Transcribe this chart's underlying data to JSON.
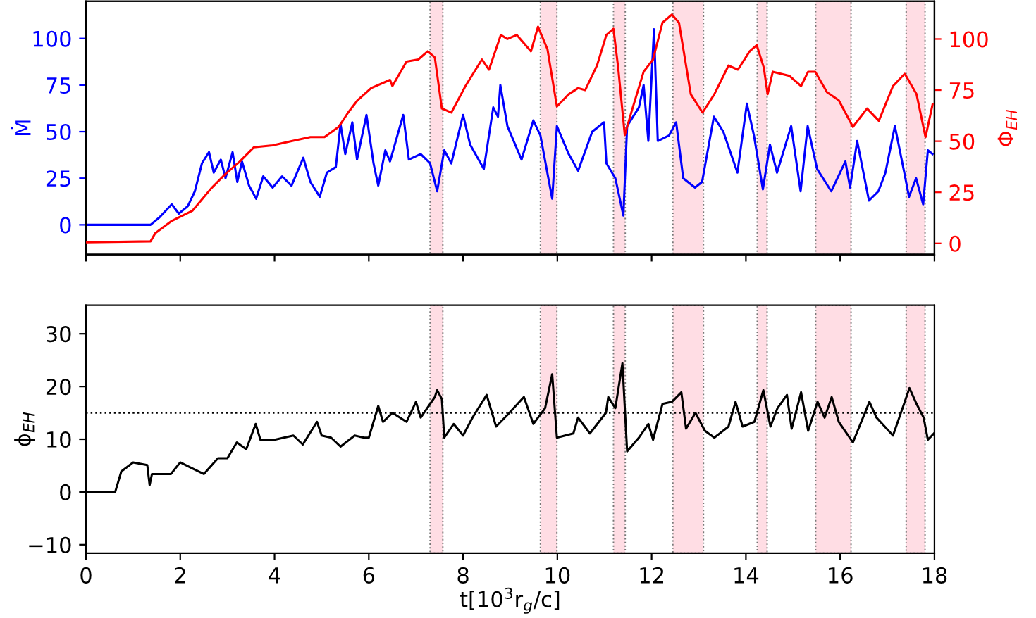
{
  "chart_data": [
    {
      "type": "line",
      "ylabel": "Ṁ",
      "y2label": "Φ$_{EH}$",
      "xlim": [
        0,
        18
      ],
      "xticks": [
        0,
        2,
        4,
        6,
        8,
        10,
        12,
        14,
        16,
        18
      ],
      "ylim": [
        -16,
        120
      ],
      "yticks": [
        0,
        25,
        50,
        75,
        100
      ],
      "y2lim": [
        -5.5,
        118.5
      ],
      "y2ticks": [
        0,
        25,
        50,
        75,
        100
      ],
      "tick_labels": "y",
      "grid": false,
      "legend": false,
      "line_style": "solid",
      "marker": "none",
      "series": [
        {
          "color": "#0000ff",
          "x": [
            0,
            1.37,
            1.56,
            1.82,
            1.97,
            2.16,
            2.31,
            2.46,
            2.61,
            2.71,
            2.86,
            2.96,
            3.11,
            3.21,
            3.31,
            3.46,
            3.61,
            3.76,
            3.96,
            4.16,
            4.36,
            4.61,
            4.76,
            4.96,
            5.11,
            5.3,
            5.4,
            5.5,
            5.65,
            5.75,
            5.95,
            6.1,
            6.2,
            6.35,
            6.45,
            6.73,
            6.85,
            7.1,
            7.3,
            7.45,
            7.6,
            7.75,
            8.0,
            8.15,
            8.44,
            8.64,
            8.74,
            8.79,
            8.94,
            9.24,
            9.49,
            9.64,
            9.89,
            9.99,
            10.24,
            10.44,
            10.74,
            10.99,
            11.04,
            11.23,
            11.4,
            11.48,
            11.73,
            11.83,
            11.93,
            12.05,
            12.13,
            12.37,
            12.52,
            12.67,
            12.92,
            13.07,
            13.32,
            13.52,
            13.82,
            14.02,
            14.17,
            14.36,
            14.51,
            14.66,
            14.96,
            15.16,
            15.31,
            15.51,
            15.81,
            16.11,
            16.21,
            16.36,
            16.61,
            16.81,
            16.96,
            17.16,
            17.36,
            17.46,
            17.61,
            17.76,
            17.86,
            17.96
          ],
          "values": [
            0,
            0,
            4,
            11,
            6,
            10,
            18,
            33,
            39,
            28,
            35,
            25,
            39,
            23,
            34,
            21,
            14,
            26,
            20,
            26,
            21,
            36,
            23,
            15,
            28,
            31,
            54,
            38,
            55,
            35,
            59,
            33,
            21,
            40,
            34,
            59,
            35,
            38,
            33,
            18,
            40,
            33,
            59,
            43,
            30,
            63,
            58,
            75,
            53,
            35,
            56,
            48,
            14,
            53,
            38,
            29,
            50,
            55,
            33,
            25,
            5,
            53,
            63,
            75,
            45,
            105,
            45,
            48,
            55,
            25,
            20,
            23,
            58,
            50,
            28,
            65,
            48,
            19,
            43,
            28,
            53,
            18,
            53,
            30,
            18,
            34,
            20,
            45,
            13,
            18,
            28,
            53,
            28,
            15,
            25,
            11,
            40,
            38
          ]
        },
        {
          "color": "#ff0000",
          "axis": "y2",
          "x": [
            0,
            1.37,
            1.47,
            1.82,
            2.26,
            2.66,
            2.96,
            3.26,
            3.56,
            3.96,
            4.36,
            4.76,
            5.06,
            5.36,
            5.56,
            5.76,
            6.05,
            6.45,
            6.5,
            6.8,
            7.05,
            7.25,
            7.4,
            7.55,
            7.75,
            8.05,
            8.4,
            8.55,
            8.8,
            8.94,
            9.14,
            9.44,
            9.59,
            9.79,
            9.99,
            10.24,
            10.44,
            10.59,
            10.84,
            11.04,
            11.19,
            11.29,
            11.43,
            11.58,
            11.83,
            12.03,
            12.23,
            12.43,
            12.58,
            12.83,
            13.08,
            13.33,
            13.63,
            13.83,
            14.08,
            14.23,
            14.38,
            14.46,
            14.57,
            14.92,
            15.17,
            15.32,
            15.47,
            15.72,
            15.97,
            16.27,
            16.57,
            16.82,
            17.12,
            17.37,
            17.62,
            17.81,
            17.96
          ],
          "values": [
            0.5,
            1,
            5,
            11,
            16,
            27,
            34,
            40,
            47,
            48,
            50,
            52,
            52,
            57,
            64,
            70,
            76,
            80,
            77,
            89,
            90,
            94,
            91,
            66,
            64,
            77,
            90,
            85,
            102,
            100,
            102,
            94,
            106,
            95,
            67,
            73,
            76,
            75,
            87,
            102,
            105,
            86,
            53,
            65,
            84,
            90,
            108,
            112,
            108,
            73,
            64,
            73,
            87,
            85,
            94,
            97,
            86,
            73,
            84,
            82,
            77,
            84,
            84,
            74,
            70,
            57,
            66,
            60,
            77,
            83,
            73,
            52,
            68
          ]
        }
      ],
      "bands": [
        {
          "axis": "x",
          "from": 7.3,
          "to": 7.57,
          "color": "#ffdde4"
        },
        {
          "axis": "x",
          "from": 9.64,
          "to": 9.99,
          "color": "#ffdde4"
        },
        {
          "axis": "x",
          "from": 11.19,
          "to": 11.44,
          "color": "#ffdde4"
        },
        {
          "axis": "x",
          "from": 12.45,
          "to": 13.1,
          "color": "#ffdde4"
        },
        {
          "axis": "x",
          "from": 14.24,
          "to": 14.45,
          "color": "#ffdde4"
        },
        {
          "axis": "x",
          "from": 15.48,
          "to": 16.23,
          "color": "#ffdde4"
        },
        {
          "axis": "x",
          "from": 17.4,
          "to": 17.8,
          "color": "#ffdde4"
        }
      ]
    },
    {
      "type": "line",
      "xlabel": "t[10$^{3}$r$_{g}$/c]",
      "ylabel": "ϕ$_{EH}$",
      "xlim": [
        0,
        18
      ],
      "xticks": [
        0,
        2,
        4,
        6,
        8,
        10,
        12,
        14,
        16,
        18
      ],
      "ylim": [
        -11.6,
        35.4
      ],
      "yticks": [
        {
          "value": -10,
          "label": "−10"
        },
        0,
        10,
        20,
        30
      ],
      "grid": false,
      "legend": false,
      "line_style": "solid",
      "marker": "none",
      "series": [
        {
          "color": "#000000",
          "x": [
            0,
            0.62,
            0.75,
            1.0,
            1.3,
            1.35,
            1.4,
            1.8,
            2.0,
            2.2,
            2.5,
            2.8,
            3.0,
            3.2,
            3.4,
            3.6,
            3.7,
            4.0,
            4.4,
            4.6,
            4.9,
            5.0,
            5.2,
            5.4,
            5.7,
            5.9,
            6.0,
            6.2,
            6.3,
            6.5,
            6.8,
            7.0,
            7.1,
            7.4,
            7.45,
            7.55,
            7.6,
            7.8,
            8.0,
            8.2,
            8.5,
            8.7,
            8.94,
            9.29,
            9.49,
            9.74,
            9.89,
            9.99,
            10.34,
            10.44,
            10.69,
            11.03,
            11.08,
            11.23,
            11.38,
            11.48,
            11.73,
            11.93,
            12.03,
            12.23,
            12.43,
            12.63,
            12.73,
            12.93,
            13.13,
            13.33,
            13.63,
            13.78,
            13.93,
            14.18,
            14.37,
            14.52,
            14.67,
            14.87,
            14.97,
            15.17,
            15.32,
            15.52,
            15.67,
            15.82,
            15.97,
            16.27,
            16.62,
            16.77,
            17.12,
            17.37,
            17.47,
            17.62,
            17.77,
            17.86,
            17.99
          ],
          "values": [
            0,
            0,
            3.9,
            5.6,
            5.1,
            1.3,
            3.4,
            3.4,
            5.6,
            4.7,
            3.4,
            6.4,
            6.4,
            9.4,
            8.1,
            12.9,
            9.9,
            9.9,
            10.7,
            9.0,
            13.3,
            10.7,
            10.3,
            8.6,
            10.7,
            10.3,
            10.3,
            16.3,
            13.3,
            15,
            13.3,
            17.1,
            14.1,
            18,
            19.3,
            17.6,
            10.3,
            12.9,
            10.7,
            14.1,
            18.4,
            12.4,
            14.6,
            18,
            12.9,
            15.9,
            22.3,
            10.3,
            11.1,
            14.1,
            11.1,
            15,
            18,
            15.9,
            24.4,
            7.7,
            10.3,
            12.9,
            9.9,
            16.7,
            17.1,
            18.9,
            12,
            15,
            11.6,
            10.3,
            12.4,
            17.1,
            12.4,
            13.3,
            19.3,
            12.4,
            15.9,
            18.4,
            12,
            18.9,
            11.6,
            17.1,
            14.1,
            18,
            13.3,
            9.4,
            17.1,
            14.1,
            10.7,
            17.1,
            19.7,
            16.7,
            14.1,
            9.9,
            11.1
          ]
        }
      ],
      "ref_lines": [
        {
          "axis": "y",
          "value": 15,
          "color": "#000000",
          "line_style": "dotted"
        }
      ],
      "bands": [
        {
          "axis": "x",
          "from": 7.3,
          "to": 7.57,
          "color": "#ffdde4"
        },
        {
          "axis": "x",
          "from": 9.64,
          "to": 9.99,
          "color": "#ffdde4"
        },
        {
          "axis": "x",
          "from": 11.19,
          "to": 11.44,
          "color": "#ffdde4"
        },
        {
          "axis": "x",
          "from": 12.45,
          "to": 13.1,
          "color": "#ffdde4"
        },
        {
          "axis": "x",
          "from": 14.24,
          "to": 14.45,
          "color": "#ffdde4"
        },
        {
          "axis": "x",
          "from": 15.48,
          "to": 16.23,
          "color": "#ffdde4"
        },
        {
          "axis": "x",
          "from": 17.4,
          "to": 17.8,
          "color": "#ffdde4"
        }
      ]
    }
  ]
}
